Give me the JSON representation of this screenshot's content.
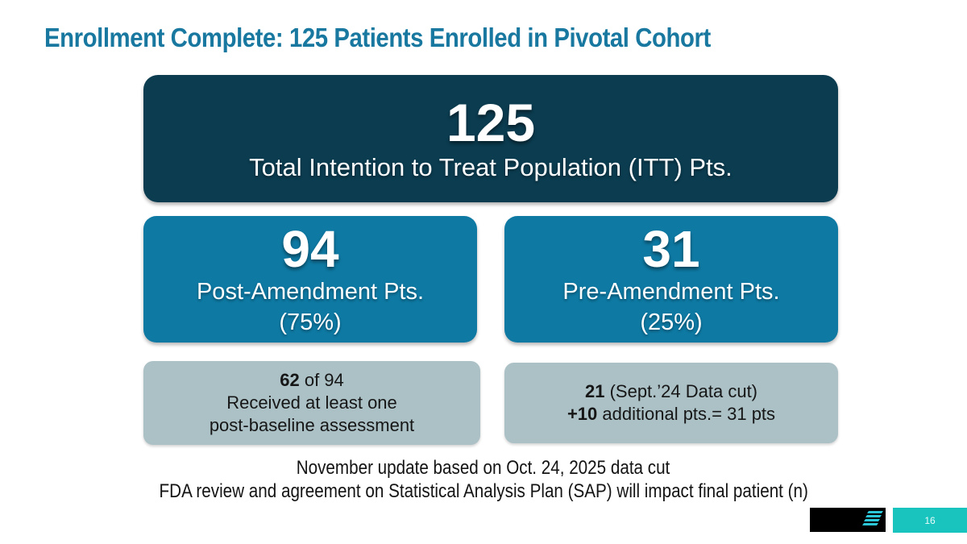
{
  "slide": {
    "title": "Enrollment Complete: 125 Patients Enrolled in Pivotal Cohort",
    "page_number": "16"
  },
  "itt_box": {
    "value": "125",
    "label": "Total Intention to Treat Population (ITT) Pts."
  },
  "post_amendment_box": {
    "value": "94",
    "label": "Post-Amendment Pts.",
    "percent": "(75%)"
  },
  "pre_amendment_box": {
    "value": "31",
    "label": "Pre-Amendment Pts.",
    "percent": "(25%)"
  },
  "post_amendment_note": {
    "line1_bold": "62",
    "line1_rest": " of 94",
    "line2": "Received at least one",
    "line3": "post-baseline assessment"
  },
  "pre_amendment_note": {
    "line1_bold": "21",
    "line1_rest": " (Sept.’24 Data cut)",
    "line2_bold": "+10",
    "line2_rest": " additional pts.= 31 pts"
  },
  "footnote": {
    "line1": "November update based on Oct. 24, 2025 data cut",
    "line2": "FDA review and agreement on Statistical Analysis Plan (SAP) will impact final patient (n)"
  },
  "logo": {
    "icon": "diagonal-stripes-logo-icon"
  },
  "colors": {
    "title_text": "#1878a0",
    "itt_box_bg": "#0b3c50",
    "amendment_box_bg": "#0e7aa4",
    "note_box_bg": "#abc1c6",
    "page_box_bg": "#19c3be",
    "logo_stripe": "#2bc7d9",
    "logo_box_bg": "#000000"
  }
}
